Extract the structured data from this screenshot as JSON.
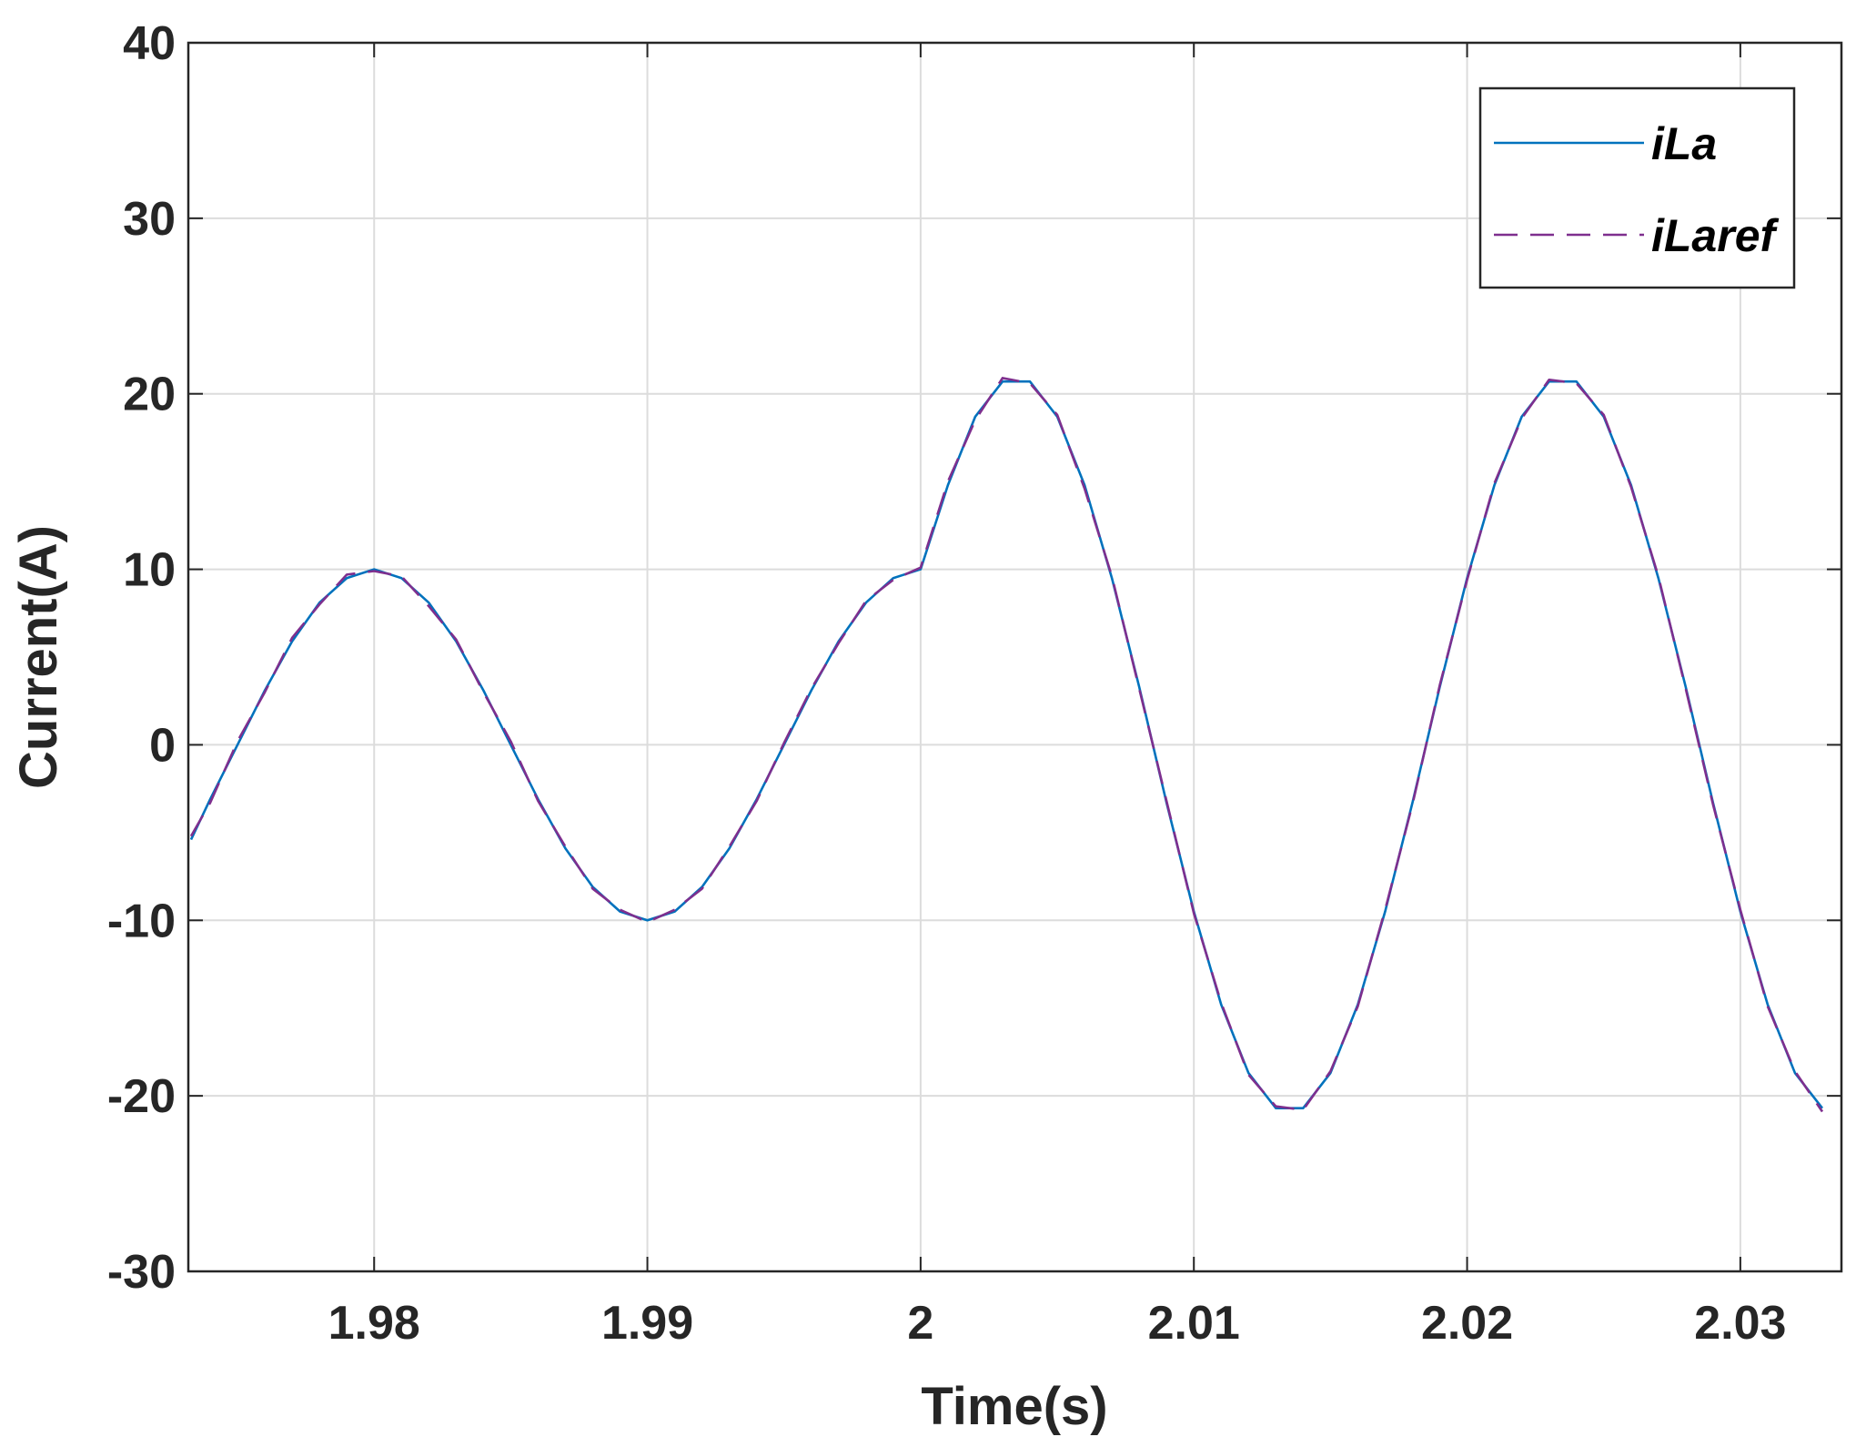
{
  "chart_data": {
    "type": "line",
    "xlabel": "Time(s)",
    "ylabel": "Current(A)",
    "x": [
      1.9733,
      1.974,
      1.975,
      1.976,
      1.977,
      1.978,
      1.979,
      1.98,
      1.981,
      1.982,
      1.983,
      1.984,
      1.985,
      1.986,
      1.987,
      1.988,
      1.989,
      1.99,
      1.991,
      1.992,
      1.993,
      1.994,
      1.995,
      1.996,
      1.997,
      1.998,
      1.999,
      2.0,
      2.001,
      2.002,
      2.003,
      2.004,
      2.005,
      2.006,
      2.007,
      2.008,
      2.009,
      2.01,
      2.011,
      2.012,
      2.013,
      2.014,
      2.015,
      2.016,
      2.017,
      2.018,
      2.019,
      2.02,
      2.021,
      2.022,
      2.023,
      2.024,
      2.025,
      2.026,
      2.027,
      2.028,
      2.029,
      2.03,
      2.031,
      2.032,
      2.033
    ],
    "series": [
      {
        "name": "iLa",
        "color": "#0072bd",
        "line_style": "solid",
        "values": [
          -5.4,
          -3.1,
          0.0,
          3.1,
          5.9,
          8.1,
          9.5,
          10,
          9.5,
          8.1,
          5.9,
          3.1,
          0.0,
          -3.1,
          -5.9,
          -8.1,
          -9.5,
          -10,
          -9.5,
          -8.1,
          -5.9,
          -3.1,
          0.0,
          3.1,
          5.9,
          8.1,
          9.5,
          10,
          14.8,
          18.7,
          20.7,
          20.7,
          18.7,
          14.8,
          9.5,
          3.3,
          -3.3,
          -9.5,
          -14.8,
          -18.7,
          -20.7,
          -20.7,
          -18.7,
          -14.8,
          -9.5,
          -3.3,
          3.3,
          9.5,
          14.8,
          18.7,
          20.7,
          20.7,
          18.7,
          14.8,
          9.5,
          3.3,
          -3.3,
          -9.5,
          -14.8,
          -18.7,
          -20.7
        ]
      },
      {
        "name": "iLaref",
        "color": "#7e2f8e",
        "line_style": "dashed",
        "values": [
          -5.2,
          -3.3,
          0.2,
          3.0,
          6.1,
          8.0,
          9.7,
          9.9,
          9.6,
          7.9,
          6.0,
          3.0,
          0.2,
          -3.2,
          -5.8,
          -8.2,
          -9.4,
          -10.1,
          -9.4,
          -8.2,
          -5.8,
          -3.2,
          0.1,
          3.2,
          5.8,
          8.2,
          9.4,
          10.1,
          15.0,
          18.5,
          20.9,
          20.6,
          18.8,
          14.6,
          9.6,
          3.2,
          -3.2,
          -9.6,
          -14.7,
          -18.8,
          -20.6,
          -20.8,
          -18.6,
          -14.9,
          -9.4,
          -3.4,
          3.4,
          9.4,
          14.9,
          18.6,
          20.8,
          20.6,
          18.8,
          14.7,
          9.6,
          3.2,
          -3.4,
          -9.4,
          -14.9,
          -18.6,
          -20.9
        ]
      }
    ],
    "xlim": [
      1.9732,
      2.0337
    ],
    "ylim": [
      -30,
      40
    ],
    "xticks": [
      1.98,
      1.99,
      2,
      2.01,
      2.02,
      2.03
    ],
    "yticks": [
      -30,
      -20,
      -10,
      0,
      10,
      20,
      30,
      40
    ],
    "grid": true,
    "legend": "upper right"
  }
}
